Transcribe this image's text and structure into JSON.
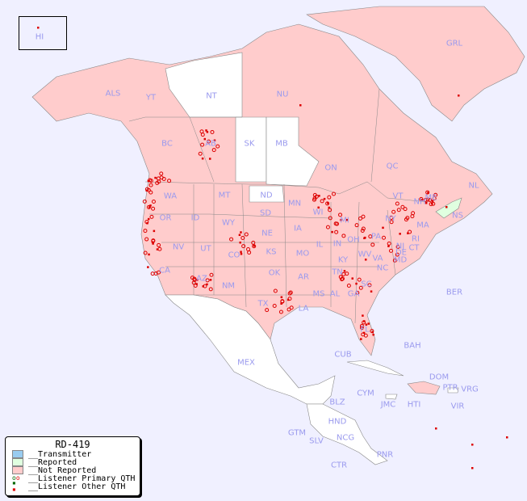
{
  "legend": {
    "title": "RD-419",
    "items": [
      {
        "label": "__Transmitter",
        "color": "#99ccf0"
      },
      {
        "label": "__Reported",
        "color": "#e0ffe0"
      },
      {
        "label": "__Not Reported",
        "color": "#ffcccc"
      },
      {
        "label": "__Listener Primary QTH",
        "color": "#cc0000"
      },
      {
        "label": "__Listener Other QTH",
        "color": "#cc0000"
      }
    ]
  },
  "colors": {
    "ocean": "#f0f0ff",
    "not_reported": "#ffcccc",
    "reported": "#e0ffe0",
    "no_data": "#ffffff",
    "label": "#9a9aee",
    "marker": "#dd0000"
  },
  "regions": [
    "HI",
    "ALS",
    "YT",
    "NT",
    "NU",
    "GRL",
    "BC",
    "AB",
    "SK",
    "MB",
    "ON",
    "QC",
    "NL",
    "NS",
    "WA",
    "OR",
    "ID",
    "MT",
    "WY",
    "ND",
    "SD",
    "NE",
    "KS",
    "OK",
    "TX",
    "MN",
    "IA",
    "MO",
    "AR",
    "LA",
    "WI",
    "IL",
    "IN",
    "OH",
    "KY",
    "TN",
    "MS",
    "AL",
    "GA",
    "FL",
    "SC",
    "NC",
    "VA",
    "WV",
    "PA",
    "NY",
    "VT",
    "NH",
    "ME",
    "MA",
    "CT",
    "RI",
    "NJ",
    "DE",
    "MD",
    "MI",
    "CA",
    "NV",
    "UT",
    "AZ",
    "NM",
    "CO",
    "MEX",
    "CUB",
    "BAH",
    "BER",
    "DOM",
    "PTR",
    "VRG",
    "VIR",
    "HTI",
    "JMC",
    "CYM",
    "BLZ",
    "HND",
    "GTM",
    "SLV",
    "NCG",
    "CTR",
    "PNR"
  ]
}
